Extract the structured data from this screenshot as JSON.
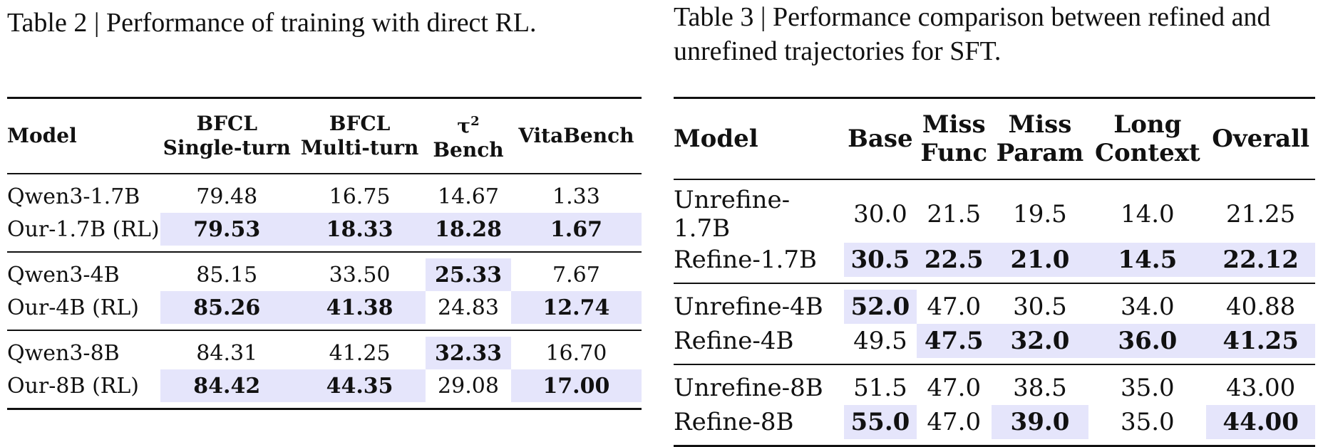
{
  "table2": {
    "caption": "Table 2 | Performance of training with direct RL.",
    "headers": [
      {
        "lines": [
          "Model"
        ]
      },
      {
        "lines": [
          "BFCL",
          "Single-turn"
        ]
      },
      {
        "lines": [
          "BFCL",
          "Multi-turn"
        ]
      },
      {
        "lines": [
          "τ",
          "Bench"
        ],
        "sup": "2"
      },
      {
        "lines": [
          "VitaBench"
        ]
      }
    ],
    "groups": [
      [
        {
          "model": "Qwen3-1.7B",
          "cells": [
            {
              "v": "79.48"
            },
            {
              "v": "16.75"
            },
            {
              "v": "14.67"
            },
            {
              "v": "1.33"
            }
          ]
        },
        {
          "model": "Our-1.7B (RL)",
          "cells": [
            {
              "v": "79.53",
              "b": true,
              "hl": true
            },
            {
              "v": "18.33",
              "b": true,
              "hl": true
            },
            {
              "v": "18.28",
              "b": true,
              "hl": true
            },
            {
              "v": "1.67",
              "b": true,
              "hl": true
            }
          ]
        }
      ],
      [
        {
          "model": "Qwen3-4B",
          "cells": [
            {
              "v": "85.15"
            },
            {
              "v": "33.50"
            },
            {
              "v": "25.33",
              "b": true,
              "hl": true
            },
            {
              "v": "7.67"
            }
          ]
        },
        {
          "model": "Our-4B (RL)",
          "cells": [
            {
              "v": "85.26",
              "b": true,
              "hl": true
            },
            {
              "v": "41.38",
              "b": true,
              "hl": true
            },
            {
              "v": "24.83"
            },
            {
              "v": "12.74",
              "b": true,
              "hl": true
            }
          ]
        }
      ],
      [
        {
          "model": "Qwen3-8B",
          "cells": [
            {
              "v": "84.31"
            },
            {
              "v": "41.25"
            },
            {
              "v": "32.33",
              "b": true,
              "hl": true
            },
            {
              "v": "16.70"
            }
          ]
        },
        {
          "model": "Our-8B (RL)",
          "cells": [
            {
              "v": "84.42",
              "b": true,
              "hl": true
            },
            {
              "v": "44.35",
              "b": true,
              "hl": true
            },
            {
              "v": "29.08"
            },
            {
              "v": "17.00",
              "b": true,
              "hl": true
            }
          ]
        }
      ]
    ]
  },
  "table3": {
    "caption": "Table 3 | Performance comparison between refined and unrefined trajectories for SFT.",
    "headers": [
      {
        "lines": [
          "Model"
        ]
      },
      {
        "lines": [
          "Base"
        ]
      },
      {
        "lines": [
          "Miss",
          "Func"
        ]
      },
      {
        "lines": [
          "Miss",
          "Param"
        ]
      },
      {
        "lines": [
          "Long",
          "Context"
        ]
      },
      {
        "lines": [
          "Overall"
        ]
      }
    ],
    "groups": [
      [
        {
          "model": "Unrefine-1.7B",
          "cells": [
            {
              "v": "30.0"
            },
            {
              "v": "21.5"
            },
            {
              "v": "19.5"
            },
            {
              "v": "14.0"
            },
            {
              "v": "21.25"
            }
          ]
        },
        {
          "model": "Refine-1.7B",
          "cells": [
            {
              "v": "30.5",
              "b": true,
              "hl": true
            },
            {
              "v": "22.5",
              "b": true,
              "hl": true
            },
            {
              "v": "21.0",
              "b": true,
              "hl": true
            },
            {
              "v": "14.5",
              "b": true,
              "hl": true
            },
            {
              "v": "22.12",
              "b": true,
              "hl": true
            }
          ]
        }
      ],
      [
        {
          "model": "Unrefine-4B",
          "cells": [
            {
              "v": "52.0",
              "b": true,
              "hl": true
            },
            {
              "v": "47.0"
            },
            {
              "v": "30.5"
            },
            {
              "v": "34.0"
            },
            {
              "v": "40.88"
            }
          ]
        },
        {
          "model": "Refine-4B",
          "cells": [
            {
              "v": "49.5"
            },
            {
              "v": "47.5",
              "b": true,
              "hl": true
            },
            {
              "v": "32.0",
              "b": true,
              "hl": true
            },
            {
              "v": "36.0",
              "b": true,
              "hl": true
            },
            {
              "v": "41.25",
              "b": true,
              "hl": true
            }
          ]
        }
      ],
      [
        {
          "model": "Unrefine-8B",
          "cells": [
            {
              "v": "51.5"
            },
            {
              "v": "47.0"
            },
            {
              "v": "38.5"
            },
            {
              "v": "35.0"
            },
            {
              "v": "43.00"
            }
          ]
        },
        {
          "model": "Refine-8B",
          "cells": [
            {
              "v": "55.0",
              "b": true,
              "hl": true
            },
            {
              "v": "47.0"
            },
            {
              "v": "39.0",
              "b": true,
              "hl": true
            },
            {
              "v": "35.0"
            },
            {
              "v": "44.00",
              "b": true,
              "hl": true
            }
          ]
        }
      ]
    ]
  }
}
